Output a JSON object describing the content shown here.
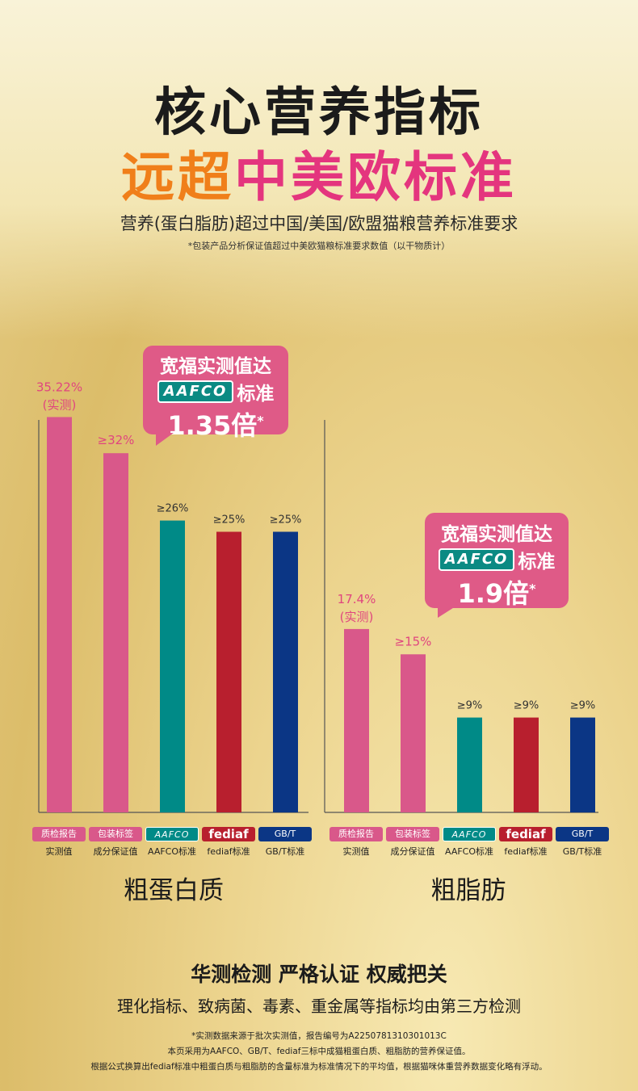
{
  "header": {
    "title_line1": "核心营养指标",
    "title_line2_a": "远超",
    "title_line2_b": "中美欧标准",
    "subtitle": "营养(蛋白脂肪)超过中国/美国/欧盟猫粮营养标准要求",
    "note": "*包装产品分析保证值超过中美欧猫粮标准要求数值（以干物质计）"
  },
  "colors": {
    "pink": "#d9588a",
    "teal": "#008a87",
    "red": "#b81f2e",
    "navy": "#0b3685",
    "pink_text": "#e0457f"
  },
  "chart_data": [
    {
      "type": "bar",
      "title": "粗蛋白质",
      "categories": [
        "质检报告 实测值",
        "包装标签 成分保证值",
        "AAFCO标准",
        "fediaf标准",
        "GB/T标准"
      ],
      "values": [
        35.22,
        32,
        26,
        25,
        25
      ],
      "labels": [
        "35.22%",
        "≥32%",
        "≥26%",
        "≥25%",
        "≥25%"
      ],
      "sub_labels": [
        "(实测)",
        "",
        "",
        "",
        ""
      ],
      "callout": {
        "line1": "宽福实测值达",
        "logo": "AAFCO",
        "line2": "标准",
        "line3": "1.35倍",
        "mark": "*"
      }
    },
    {
      "type": "bar",
      "title": "粗脂肪",
      "categories": [
        "质检报告 实测值",
        "包装标签 成分保证值",
        "AAFCO标准",
        "fediaf标准",
        "GB/T标准"
      ],
      "values": [
        17.4,
        15,
        9,
        9,
        9
      ],
      "labels": [
        "17.4%",
        "≥15%",
        "≥9%",
        "≥9%",
        "≥9%"
      ],
      "sub_labels": [
        "(实测)",
        "",
        "",
        "",
        ""
      ],
      "callout": {
        "line1": "宽福实测值达",
        "logo": "AAFCO",
        "line2": "标准",
        "line3": "1.9倍",
        "mark": "*"
      }
    }
  ],
  "legend": [
    {
      "badge": "质检报告",
      "caption": "实测值",
      "color": "#d9588a"
    },
    {
      "badge": "包装标签",
      "caption": "成分保证值",
      "color": "#d9588a"
    },
    {
      "badge": "AAFCO",
      "caption": "AAFCO标准",
      "color": "#008a87"
    },
    {
      "badge": "fediaf",
      "caption": "fediaf标准",
      "color": "#b81f2e"
    },
    {
      "badge": "GB/T",
      "caption": "GB/T标准",
      "color": "#0b3685"
    }
  ],
  "footer": {
    "headline": "华测检测  严格认证  权威把关",
    "line": "理化指标、致病菌、毒素、重金属等指标均由第三方检测",
    "notes": [
      "*实测数据来源于批次实测值，报告编号为A2250781310301013C",
      "本页采用为AAFCO、GB/T、fediaf三标中成猫粗蛋白质、粗脂肪的营养保证值。",
      "根据公式换算出fediaf标准中粗蛋白质与粗脂肪的含量标准为标准情况下的平均值，根据猫咪体重营养数据变化略有浮动。"
    ]
  }
}
